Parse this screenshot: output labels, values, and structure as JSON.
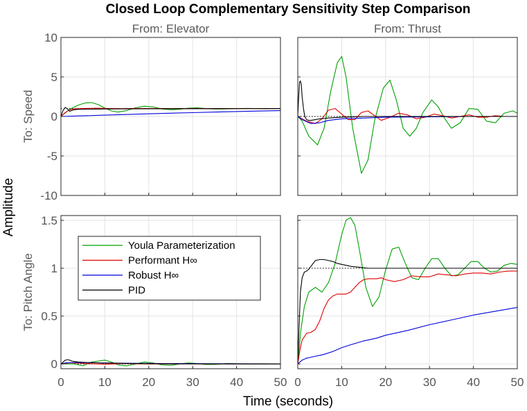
{
  "chart_data": {
    "type": "line",
    "title": "Closed Loop Complementary Sensitivity Step Comparison",
    "xlabel": "Time (seconds)",
    "ylabel": "Amplitude",
    "grid": true,
    "legend": {
      "placement": "inside-lower-left-panel",
      "entries": [
        {
          "name": "Youla Parameterization",
          "color": "#00a000"
        },
        {
          "name": "Performant H∞",
          "color": "#e00000"
        },
        {
          "name": "Robust H∞",
          "color": "#0000dd"
        },
        {
          "name": "PID",
          "color": "#000000"
        }
      ]
    },
    "panels": [
      {
        "id": "speed-elevator",
        "column_title": "From: Elevator",
        "row_label": "To: Speed",
        "xlim": [
          0,
          50
        ],
        "ylim": [
          -10,
          10
        ],
        "xticks": [
          0,
          10,
          20,
          30,
          40,
          50
        ],
        "yticks": [
          -10,
          -5,
          0,
          5,
          10
        ],
        "show_xticks": false,
        "show_yticks": true,
        "reference": 1,
        "series": [
          {
            "name": "Youla Parameterization",
            "color": "#00a000",
            "x": [
              0,
              2,
              4,
              5.5,
              7,
              8.5,
              10,
              11.5,
              13,
              15,
              17,
              19,
              21,
              23,
              25,
              27,
              29,
              31,
              33,
              35,
              37,
              40,
              43,
              46,
              50
            ],
            "y": [
              0,
              0.9,
              1.45,
              1.7,
              1.75,
              1.5,
              1.05,
              0.7,
              0.55,
              0.75,
              1.1,
              1.3,
              1.2,
              0.95,
              0.85,
              0.9,
              1.05,
              1.1,
              1.0,
              0.95,
              0.95,
              1.0,
              1.02,
              0.98,
              1.0
            ]
          },
          {
            "name": "Performant H∞",
            "color": "#e00000",
            "x": [
              0,
              1,
              2,
              3,
              5,
              8,
              11,
              14,
              17,
              20,
              25,
              30,
              35,
              40,
              45,
              50
            ],
            "y": [
              0,
              0.5,
              0.85,
              0.95,
              1.0,
              1.05,
              1.0,
              0.98,
              1.02,
              1.0,
              1.01,
              1.0,
              1.0,
              1.0,
              1.0,
              1.0
            ]
          },
          {
            "name": "Robust H∞",
            "color": "#0000dd",
            "x": [
              0,
              5,
              10,
              15,
              20,
              25,
              30,
              35,
              40,
              45,
              50
            ],
            "y": [
              0,
              0.08,
              0.17,
              0.25,
              0.33,
              0.41,
              0.48,
              0.55,
              0.62,
              0.68,
              0.74
            ]
          },
          {
            "name": "PID",
            "color": "#000000",
            "x": [
              0,
              0.5,
              1,
              1.5,
              2,
              2.5,
              3,
              4,
              6,
              8,
              10,
              15,
              20,
              30,
              40,
              50
            ],
            "y": [
              0,
              0.8,
              1.15,
              0.95,
              0.65,
              0.75,
              0.85,
              0.9,
              0.92,
              0.93,
              0.95,
              0.96,
              0.97,
              0.98,
              0.99,
              1.0
            ]
          }
        ]
      },
      {
        "id": "speed-thrust",
        "column_title": "From: Thrust",
        "row_label": "",
        "xlim": [
          0,
          50
        ],
        "ylim": [
          -10,
          10
        ],
        "xticks": [
          0,
          10,
          20,
          30,
          40,
          50
        ],
        "yticks": [
          -10,
          -5,
          0,
          5,
          10
        ],
        "show_xticks": false,
        "show_yticks": false,
        "reference": 0,
        "series": [
          {
            "name": "Youla Parameterization",
            "color": "#00a000",
            "x": [
              0,
              1,
              2.5,
              4.5,
              6,
              7.5,
              9,
              10,
              11,
              12.5,
              14.5,
              16,
              17.5,
              19.5,
              21,
              22.5,
              24,
              25.5,
              27,
              28.5,
              30.5,
              32,
              33.5,
              35,
              37,
              39,
              41,
              43,
              45,
              47,
              49,
              50
            ],
            "y": [
              0,
              -0.6,
              -2.5,
              -3.6,
              -1.5,
              3.2,
              6.8,
              7.6,
              5.0,
              -1.5,
              -7.2,
              -5.5,
              -0.5,
              3.6,
              4.6,
              2.0,
              -1.5,
              -2.5,
              -1.5,
              0.5,
              2.1,
              1.2,
              -0.3,
              -1.5,
              -0.8,
              1.0,
              0.9,
              -0.6,
              -0.8,
              0.4,
              0.7,
              0.4
            ]
          },
          {
            "name": "Performant H∞",
            "color": "#e00000",
            "x": [
              0,
              2,
              4,
              5.5,
              7,
              8.5,
              10,
              11.5,
              13,
              14.5,
              16,
              17.5,
              19,
              21,
              23,
              25,
              27,
              29,
              31,
              33,
              35,
              37,
              39,
              41,
              43,
              45,
              47,
              50
            ],
            "y": [
              0,
              -0.6,
              -0.9,
              -0.3,
              0.8,
              1.0,
              0.3,
              -0.4,
              -0.4,
              0.5,
              0.7,
              0.1,
              -0.5,
              -0.1,
              0.4,
              0.2,
              -0.3,
              -0.1,
              0.3,
              0.1,
              -0.2,
              0.0,
              0.2,
              -0.1,
              -0.1,
              0.1,
              0.0,
              0.0
            ]
          },
          {
            "name": "Robust H∞",
            "color": "#0000dd",
            "x": [
              0,
              1,
              3,
              5,
              7,
              10,
              15,
              20,
              30,
              40,
              50
            ],
            "y": [
              0,
              -0.4,
              -0.9,
              -0.8,
              -0.5,
              -0.3,
              -0.2,
              -0.1,
              -0.05,
              0.0,
              0.0
            ]
          },
          {
            "name": "PID",
            "color": "#000000",
            "x": [
              0,
              0.2,
              0.4,
              0.6,
              0.8,
              1.0,
              1.3,
              1.6,
              2.0,
              2.5,
              3.0,
              4.0,
              5.0,
              7.0,
              10,
              15,
              20,
              30,
              40,
              50
            ],
            "y": [
              0,
              2.5,
              4.3,
              4.5,
              4.0,
              2.5,
              1.0,
              0.0,
              -0.4,
              -0.5,
              -0.5,
              -0.4,
              -0.3,
              -0.2,
              -0.1,
              0.0,
              0.0,
              0.0,
              0.0,
              0.0
            ]
          }
        ]
      },
      {
        "id": "pitch-elevator",
        "column_title": "",
        "row_label": "To: Pitch Angle",
        "xlim": [
          0,
          50
        ],
        "ylim": [
          -0.05,
          1.55
        ],
        "xticks": [
          0,
          10,
          20,
          30,
          40,
          50
        ],
        "yticks": [
          0,
          0.5,
          1,
          1.5
        ],
        "show_xticks": true,
        "show_yticks": true,
        "reference": 0,
        "series": [
          {
            "name": "Youla Parameterization",
            "color": "#00a000",
            "x": [
              0,
              3,
              5,
              7,
              8.5,
              10,
              11.5,
              13,
              15,
              17,
              19,
              21,
              23,
              25,
              27,
              29,
              31,
              33,
              35,
              38,
              41,
              44,
              47,
              50
            ],
            "y": [
              0,
              0.0,
              -0.02,
              0.02,
              0.03,
              0.04,
              0.02,
              -0.01,
              -0.02,
              0.0,
              0.02,
              0.01,
              -0.01,
              -0.015,
              0.0,
              0.01,
              0.005,
              -0.005,
              -0.005,
              0.005,
              0.0,
              0.0,
              0.0,
              0.0
            ]
          },
          {
            "name": "Performant H∞",
            "color": "#e00000",
            "x": [
              0,
              2,
              4,
              6,
              8,
              10,
              12,
              14,
              17,
              20,
              25,
              30,
              35,
              40,
              45,
              50
            ],
            "y": [
              0,
              0.012,
              0.008,
              0.003,
              0.0,
              -0.004,
              0.0,
              0.004,
              0.002,
              0.0,
              0.0,
              0.0,
              0.0,
              0.0,
              0.0,
              0.0
            ]
          },
          {
            "name": "Robust H∞",
            "color": "#0000dd",
            "x": [
              0,
              1,
              3,
              5,
              8,
              12,
              18,
              25,
              35,
              50
            ],
            "y": [
              0,
              0.01,
              0.015,
              0.014,
              0.012,
              0.009,
              0.006,
              0.004,
              0.002,
              0.001
            ]
          },
          {
            "name": "PID",
            "color": "#000000",
            "x": [
              0,
              0.5,
              1,
              1.5,
              2,
              2.5,
              3,
              4,
              6,
              8,
              10,
              15,
              20,
              30,
              40,
              50
            ],
            "y": [
              0,
              0.02,
              0.04,
              0.045,
              0.04,
              0.03,
              0.025,
              0.02,
              0.015,
              0.012,
              0.01,
              0.006,
              0.003,
              0.001,
              0.0,
              0.0
            ]
          }
        ]
      },
      {
        "id": "pitch-thrust",
        "column_title": "",
        "row_label": "",
        "xlim": [
          0,
          50
        ],
        "ylim": [
          -0.05,
          1.55
        ],
        "xticks": [
          0,
          10,
          20,
          30,
          40,
          50
        ],
        "yticks": [
          0,
          0.5,
          1,
          1.5
        ],
        "show_xticks": true,
        "show_yticks": false,
        "reference": 1,
        "series": [
          {
            "name": "Youla Parameterization",
            "color": "#00a000",
            "x": [
              0,
              0.7,
              1.5,
              2.5,
              4,
              5.5,
              7,
              8.5,
              10,
              11,
              12,
              13,
              14,
              15.5,
              17,
              18.5,
              20,
              21.5,
              23,
              24.5,
              26,
              27.5,
              29,
              30.5,
              32,
              33.5,
              35,
              36.5,
              38,
              39.5,
              41,
              42.5,
              44,
              45.5,
              47,
              48.5,
              50
            ],
            "y": [
              0,
              0.35,
              0.6,
              0.75,
              0.8,
              0.75,
              0.85,
              1.05,
              1.35,
              1.5,
              1.53,
              1.45,
              1.2,
              0.8,
              0.6,
              0.7,
              0.98,
              1.2,
              1.22,
              1.05,
              0.9,
              0.88,
              1.0,
              1.1,
              1.1,
              1.0,
              0.92,
              0.93,
              1.0,
              1.07,
              1.07,
              1.0,
              0.96,
              0.97,
              1.03,
              1.05,
              1.04
            ]
          },
          {
            "name": "Performant H∞",
            "color": "#e00000",
            "x": [
              0,
              0.5,
              1,
              2,
              3,
              4,
              5,
              6,
              7,
              8,
              9,
              10,
              11,
              12,
              13,
              14,
              15,
              16,
              17,
              18,
              19,
              20,
              22,
              24,
              26,
              28,
              30,
              32,
              34,
              36,
              38,
              40,
              42,
              44,
              46,
              48,
              50
            ],
            "y": [
              0,
              0.15,
              0.25,
              0.32,
              0.33,
              0.36,
              0.45,
              0.58,
              0.67,
              0.71,
              0.73,
              0.73,
              0.73,
              0.75,
              0.8,
              0.85,
              0.88,
              0.89,
              0.89,
              0.89,
              0.9,
              0.88,
              0.86,
              0.88,
              0.92,
              0.91,
              0.91,
              0.94,
              0.93,
              0.92,
              0.94,
              0.95,
              0.95,
              0.94,
              0.96,
              0.97,
              0.97
            ]
          },
          {
            "name": "Robust H∞",
            "color": "#0000dd",
            "x": [
              0,
              1,
              2,
              3,
              4,
              5,
              6,
              8,
              10,
              12,
              15,
              18,
              20,
              25,
              30,
              35,
              40,
              45,
              50
            ],
            "y": [
              0,
              0.04,
              0.06,
              0.07,
              0.08,
              0.09,
              0.1,
              0.13,
              0.17,
              0.2,
              0.24,
              0.27,
              0.3,
              0.35,
              0.41,
              0.46,
              0.51,
              0.55,
              0.59
            ]
          },
          {
            "name": "PID",
            "color": "#000000",
            "x": [
              0,
              0.3,
              0.6,
              1.0,
              1.5,
              2.0,
              2.5,
              3.0,
              3.5,
              4.0,
              5.0,
              6.0,
              7.0,
              8.0,
              9.0,
              10,
              12,
              14,
              16,
              20,
              25,
              30,
              40,
              50
            ],
            "y": [
              0,
              0.4,
              0.75,
              0.9,
              0.96,
              0.97,
              0.99,
              1.02,
              1.05,
              1.08,
              1.09,
              1.09,
              1.08,
              1.07,
              1.05,
              1.04,
              1.02,
              1.01,
              1.0,
              1.0,
              1.0,
              1.0,
              1.0,
              1.0
            ]
          }
        ]
      }
    ]
  }
}
